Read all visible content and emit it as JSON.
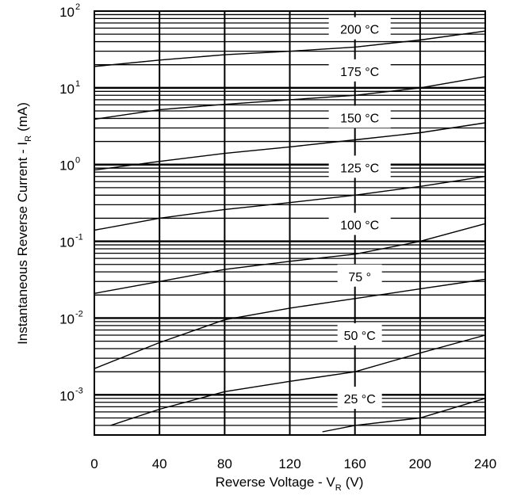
{
  "chart_data": {
    "type": "line",
    "title": "",
    "xlabel": "Reverse Voltage - V",
    "xlabel_sub": "R",
    "xlabel_unit": "(V)",
    "ylabel": "Instantaneous Reverse Current - I",
    "ylabel_sub": "R",
    "ylabel_unit": "(mA)",
    "xlim": [
      0,
      240
    ],
    "ylim": [
      0.0003,
      100
    ],
    "yscale": "log",
    "grid": true,
    "x_ticks": [
      "0",
      "40",
      "80",
      "120",
      "160",
      "200",
      "240"
    ],
    "y_ticks": [
      {
        "base": "10",
        "exp": "-3",
        "value": 0.001
      },
      {
        "base": "10",
        "exp": "-2",
        "value": 0.01
      },
      {
        "base": "10",
        "exp": "-1",
        "value": 0.1
      },
      {
        "base": "10",
        "exp": "0",
        "value": 1
      },
      {
        "base": "10",
        "exp": "1",
        "value": 10
      },
      {
        "base": "10",
        "exp": "2",
        "value": 100
      }
    ],
    "series": [
      {
        "name": "200 °C",
        "label_x": 160,
        "x": [
          0,
          40,
          80,
          120,
          160,
          200,
          240
        ],
        "y": [
          19,
          23,
          27,
          30,
          34,
          42,
          55
        ]
      },
      {
        "name": "175 °C",
        "label_x": 160,
        "x": [
          0,
          40,
          80,
          120,
          160,
          200,
          240
        ],
        "y": [
          3.9,
          5.2,
          6.1,
          7.0,
          8.0,
          10,
          14
        ]
      },
      {
        "name": "150 °C",
        "label_x": 160,
        "x": [
          0,
          40,
          80,
          120,
          160,
          200,
          240
        ],
        "y": [
          0.85,
          1.1,
          1.4,
          1.7,
          2.1,
          2.6,
          3.5
        ]
      },
      {
        "name": "125 °C",
        "label_x": 160,
        "x": [
          0,
          40,
          80,
          120,
          160,
          200,
          240
        ],
        "y": [
          0.14,
          0.2,
          0.26,
          0.32,
          0.4,
          0.52,
          0.7
        ]
      },
      {
        "name": "100 °C",
        "label_x": 160,
        "x": [
          0,
          40,
          80,
          120,
          160,
          200,
          240
        ],
        "y": [
          0.021,
          0.03,
          0.043,
          0.055,
          0.068,
          0.1,
          0.17
        ]
      },
      {
        "name": "75 °",
        "label_x": 160,
        "x": [
          0,
          40,
          80,
          120,
          160,
          200,
          240
        ],
        "y": [
          0.0022,
          0.0048,
          0.0095,
          0.0135,
          0.018,
          0.024,
          0.032
        ]
      },
      {
        "name": "50 °C",
        "label_x": 160,
        "x": [
          10,
          40,
          80,
          120,
          160,
          200,
          240
        ],
        "y": [
          0.0004,
          0.00065,
          0.0011,
          0.0015,
          0.002,
          0.0035,
          0.006
        ]
      },
      {
        "name": "25 °C",
        "label_x": 160,
        "x": [
          140,
          160,
          200,
          240
        ],
        "y": [
          0.00033,
          0.0004,
          0.0005,
          0.0009
        ]
      }
    ]
  }
}
